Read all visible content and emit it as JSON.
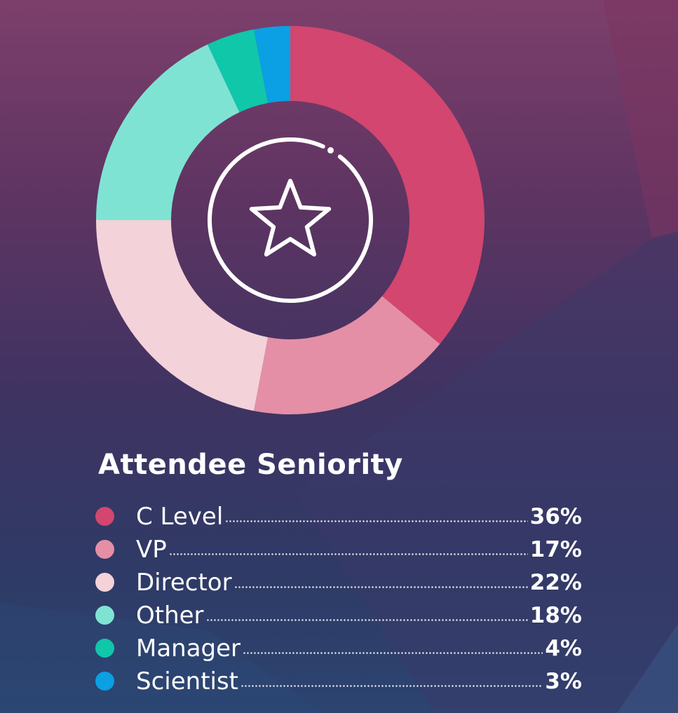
{
  "chart_data": {
    "type": "pie",
    "title": "Attendee Seniority",
    "categories": [
      "C Level",
      "VP",
      "Director",
      "Other",
      "Manager",
      "Scientist"
    ],
    "values": [
      36,
      17,
      22,
      18,
      4,
      3
    ],
    "value_labels": [
      "36%",
      "17%",
      "22%",
      "18%",
      "4%",
      "3%"
    ],
    "colors": [
      "#d2466f",
      "#e48fa6",
      "#f3d2d9",
      "#7fe3d4",
      "#10c7aa",
      "#0aa0e3"
    ],
    "legend_position": "bottom",
    "center_icon": "star-icon"
  }
}
